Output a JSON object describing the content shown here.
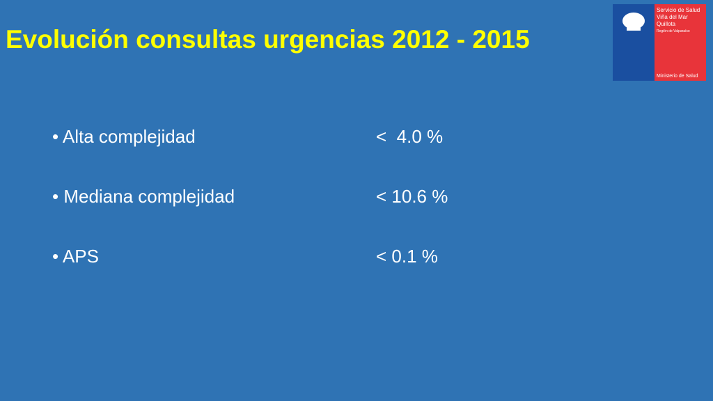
{
  "header": {
    "title": "Evolución consultas urgencias 2012 - 2015"
  },
  "logo": {
    "lines": [
      "Servicio de Salud",
      "Viña del Mar",
      "Quillota"
    ],
    "region": "Región de Valparaíso",
    "ministry": "Ministerio de Salud"
  },
  "items": [
    {
      "label": "Alta complejidad",
      "value": "<  4.0 %"
    },
    {
      "label": "Mediana complejidad",
      "value": "< 10.6 %"
    },
    {
      "label": "APS",
      "value": "< 0.1 %"
    }
  ]
}
